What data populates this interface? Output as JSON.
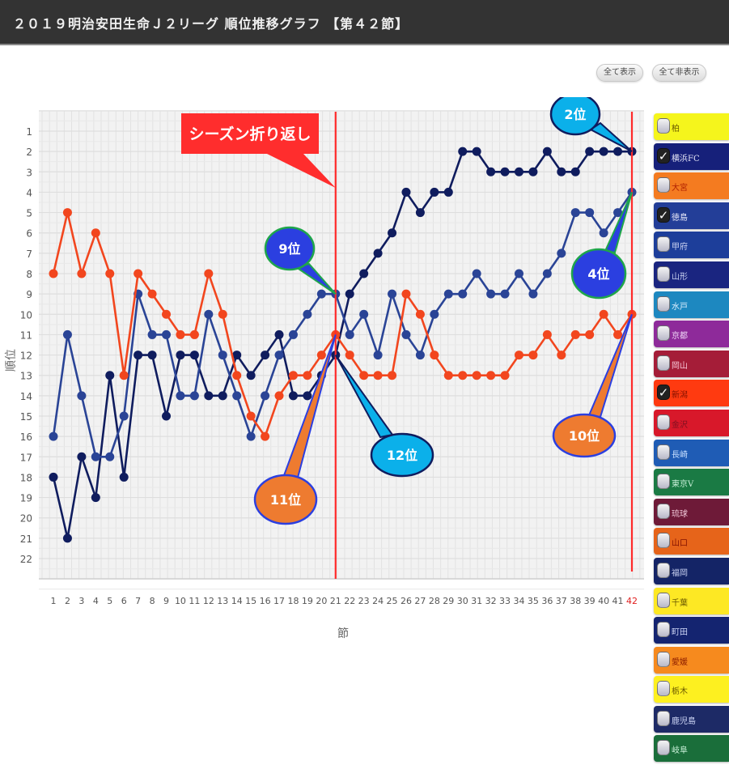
{
  "header": {
    "title": "２０１９明治安田生命Ｊ２リーグ 順位推移グラフ 【第４２節】"
  },
  "toolbar": {
    "show_all_label": "全て表示",
    "hide_all_label": "全て非表示"
  },
  "chart_data": {
    "type": "line",
    "title": "2019明治安田生命J2リーグ 順位推移グラフ【第42節】",
    "xlabel": "節",
    "ylabel": "順位",
    "x": [
      1,
      2,
      3,
      4,
      5,
      6,
      7,
      8,
      9,
      10,
      11,
      12,
      13,
      14,
      15,
      16,
      17,
      18,
      19,
      20,
      21,
      22,
      23,
      24,
      25,
      26,
      27,
      28,
      29,
      30,
      31,
      32,
      33,
      34,
      35,
      36,
      37,
      38,
      39,
      40,
      41,
      42
    ],
    "y_ticks": [
      1,
      2,
      3,
      4,
      5,
      6,
      7,
      8,
      9,
      10,
      11,
      12,
      13,
      14,
      15,
      16,
      17,
      18,
      19,
      20,
      21,
      22
    ],
    "ylim": [
      22,
      1
    ],
    "y_inverted": true,
    "grid": true,
    "highlight_x_label": "42",
    "series": [
      {
        "name": "横浜FC",
        "color": "#0f1c5e",
        "values": [
          18,
          21,
          17,
          19,
          13,
          18,
          12,
          12,
          15,
          12,
          12,
          14,
          14,
          12,
          13,
          12,
          11,
          14,
          14,
          13,
          12,
          9,
          8,
          7,
          6,
          4,
          5,
          4,
          4,
          2,
          2,
          3,
          3,
          3,
          3,
          2,
          3,
          3,
          2,
          2,
          2,
          2
        ]
      },
      {
        "name": "徳島",
        "color": "#2a4496",
        "values": [
          16,
          11,
          14,
          17,
          17,
          15,
          9,
          11,
          11,
          14,
          14,
          10,
          12,
          14,
          16,
          14,
          12,
          11,
          10,
          9,
          9,
          11,
          10,
          12,
          9,
          11,
          12,
          10,
          9,
          9,
          8,
          9,
          9,
          8,
          9,
          8,
          7,
          5,
          5,
          6,
          5,
          4
        ]
      },
      {
        "name": "新潟",
        "color": "#f2461e",
        "values": [
          8,
          5,
          8,
          6,
          8,
          13,
          8,
          9,
          10,
          11,
          11,
          8,
          10,
          13,
          15,
          16,
          14,
          13,
          13,
          12,
          11,
          12,
          13,
          13,
          13,
          9,
          10,
          12,
          13,
          13,
          13,
          13,
          13,
          12,
          12,
          11,
          12,
          11,
          11,
          10,
          11,
          10
        ]
      }
    ],
    "markers": [
      {
        "x": 21,
        "label": "シーズン折り返し",
        "color": "#ff2a2a"
      },
      {
        "x": 42,
        "color": "#ff2a2a"
      }
    ],
    "annotations": [
      {
        "text": "シーズン折り返し",
        "target_x": 21,
        "style": "red-rect"
      },
      {
        "text": "9位",
        "target_x": 21,
        "target_y": 9,
        "series": "徳島",
        "fill": "#2b3fe0",
        "border": "#1fa64a"
      },
      {
        "text": "11位",
        "target_x": 21,
        "target_y": 11,
        "series": "新潟",
        "fill": "#ee7b30",
        "border": "#2b3fe0"
      },
      {
        "text": "12位",
        "target_x": 21,
        "target_y": 12,
        "series": "横浜FC",
        "fill": "#0bb0ea",
        "border": "#0f1c5e"
      },
      {
        "text": "2位",
        "target_x": 42,
        "target_y": 2,
        "series": "横浜FC",
        "fill": "#0bb0ea",
        "border": "#0f1c5e"
      },
      {
        "text": "4位",
        "target_x": 42,
        "target_y": 4,
        "series": "徳島",
        "fill": "#2b3fe0",
        "border": "#1fa64a"
      },
      {
        "text": "10位",
        "target_x": 42,
        "target_y": 10,
        "series": "新潟",
        "fill": "#ee7b30",
        "border": "#2b3fe0"
      }
    ]
  },
  "legend": {
    "items": [
      {
        "label": "柏",
        "bg": "#f5f51c",
        "fg": "#6b5a00",
        "checked": false
      },
      {
        "label": "横浜FC",
        "bg": "#16207a",
        "fg": "#e8e8f8",
        "checked": true
      },
      {
        "label": "大宮",
        "bg": "#f47b20",
        "fg": "#b02000",
        "checked": false
      },
      {
        "label": "徳島",
        "bg": "#233e98",
        "fg": "#e8e8f8",
        "checked": true
      },
      {
        "label": "甲府",
        "bg": "#1d3e9a",
        "fg": "#c8d0f0",
        "checked": false
      },
      {
        "label": "山形",
        "bg": "#1a2580",
        "fg": "#c8d0f0",
        "checked": false
      },
      {
        "label": "水戸",
        "bg": "#1d88c0",
        "fg": "#e0f0ff",
        "checked": false
      },
      {
        "label": "京都",
        "bg": "#8e2a9a",
        "fg": "#f0d8f8",
        "checked": false
      },
      {
        "label": "岡山",
        "bg": "#a51d38",
        "fg": "#f8c8d8",
        "checked": false
      },
      {
        "label": "新潟",
        "bg": "#ff3a10",
        "fg": "#801000",
        "checked": true
      },
      {
        "label": "金沢",
        "bg": "#d8182a",
        "fg": "#801020",
        "checked": false
      },
      {
        "label": "長崎",
        "bg": "#1f5cb5",
        "fg": "#c8e0ff",
        "checked": false
      },
      {
        "label": "東京V",
        "bg": "#1a7a44",
        "fg": "#c8f0d8",
        "checked": false
      },
      {
        "label": "琉球",
        "bg": "#6e1a38",
        "fg": "#f0c8d8",
        "checked": false
      },
      {
        "label": "山口",
        "bg": "#e6641a",
        "fg": "#801000",
        "checked": false
      },
      {
        "label": "福岡",
        "bg": "#142466",
        "fg": "#c8d0f0",
        "checked": false
      },
      {
        "label": "千葉",
        "bg": "#fde824",
        "fg": "#6b5a00",
        "checked": false
      },
      {
        "label": "町田",
        "bg": "#142470",
        "fg": "#d0d8f8",
        "checked": false
      },
      {
        "label": "愛媛",
        "bg": "#f68a1e",
        "fg": "#902000",
        "checked": false
      },
      {
        "label": "栃木",
        "bg": "#fdf020",
        "fg": "#6b5a00",
        "checked": false
      },
      {
        "label": "鹿児島",
        "bg": "#1d2a66",
        "fg": "#d0d8f8",
        "checked": false
      },
      {
        "label": "岐阜",
        "bg": "#1a6e3a",
        "fg": "#c8f0d8",
        "checked": false
      }
    ]
  }
}
